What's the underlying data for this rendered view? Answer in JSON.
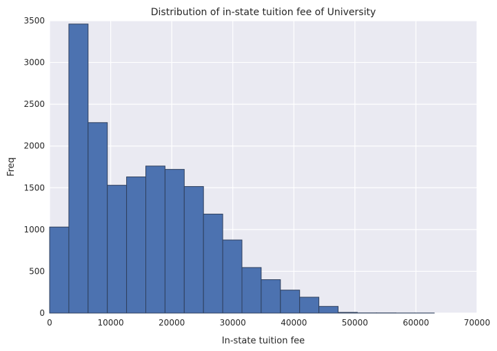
{
  "chart_data": {
    "type": "bar",
    "title": "Distribution of in-state tuition fee of University",
    "xlabel": "In-state tuition fee",
    "ylabel": "Freq",
    "xlim": [
      0,
      70000
    ],
    "ylim": [
      0,
      3500
    ],
    "xticks": [
      0,
      10000,
      20000,
      30000,
      40000,
      50000,
      60000,
      70000
    ],
    "yticks": [
      0,
      500,
      1000,
      1500,
      2000,
      2500,
      3000,
      3500
    ],
    "grid": true,
    "bin_edges": [
      0,
      3150,
      6300,
      9450,
      12600,
      15750,
      18900,
      22050,
      25200,
      28350,
      31500,
      34650,
      37800,
      40950,
      44100,
      47250,
      50400,
      53550,
      56700,
      59850,
      63000
    ],
    "values": [
      1030,
      3460,
      2280,
      1530,
      1630,
      1760,
      1720,
      1515,
      1185,
      875,
      545,
      400,
      275,
      190,
      80,
      8,
      2,
      2,
      1,
      1
    ],
    "colors": {
      "bar": "#4c72b0",
      "edge": "#2e3f5c",
      "plot_bg": "#eaeaf2",
      "grid": "#ffffff"
    }
  }
}
